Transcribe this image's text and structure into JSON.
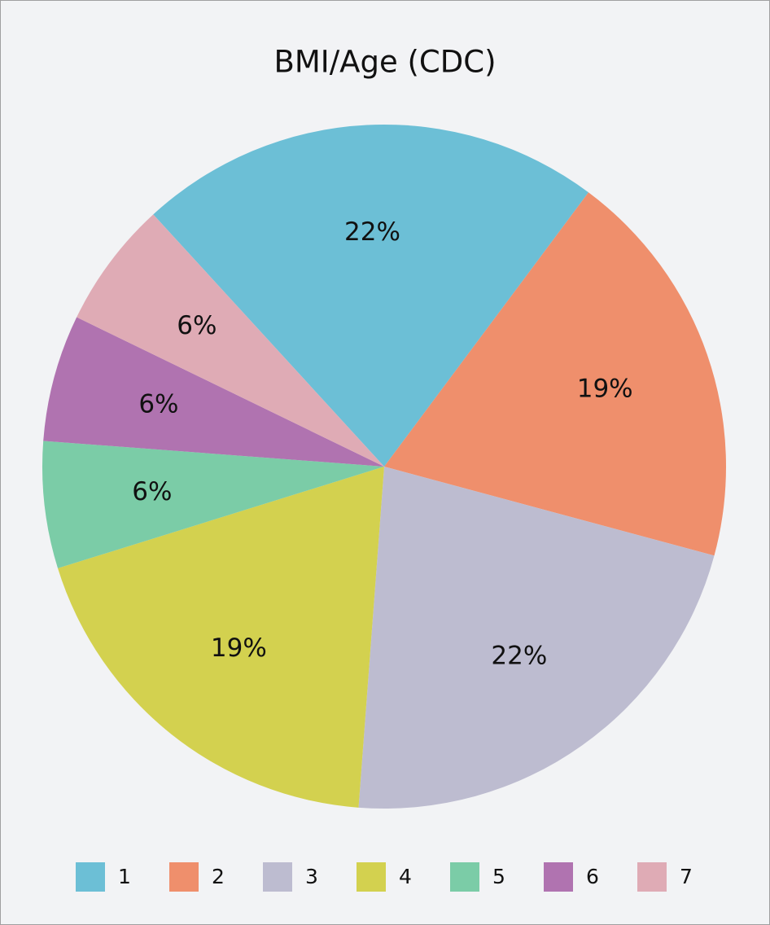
{
  "chart_data": {
    "type": "pie",
    "title": "BMI/Age (CDC)",
    "categories": [
      "1",
      "2",
      "3",
      "4",
      "5",
      "6",
      "7"
    ],
    "values": [
      22,
      19,
      22,
      19,
      6,
      6,
      6
    ],
    "value_labels": [
      "22%",
      "19%",
      "22%",
      "19%",
      "6%",
      "6%",
      "6%"
    ],
    "colors": [
      "#6cbfd6",
      "#ef8f6c",
      "#bdbcd0",
      "#d3d14f",
      "#7bcca7",
      "#b073b0",
      "#dfabb5"
    ],
    "legend": "bottom"
  }
}
